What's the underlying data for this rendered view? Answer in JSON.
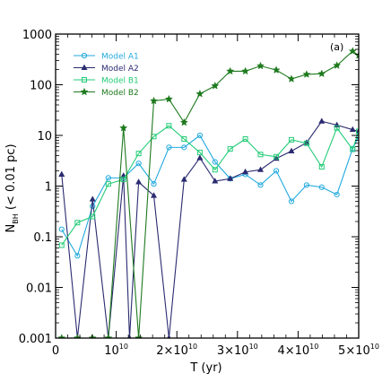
{
  "chart_data": {
    "type": "line",
    "panel_label": "(a)",
    "xlabel": "T (yr)",
    "ylabel_main": "N",
    "ylabel_sub": "BH",
    "ylabel_rest": " (< 0.01 pc)",
    "xlim": [
      0,
      50000000000.0
    ],
    "ylim": [
      0.001,
      1000
    ],
    "yscale": "log",
    "x_ticks": [
      {
        "value": 0,
        "label": "0",
        "exp": ""
      },
      {
        "value": 10000000000.0,
        "label": "10",
        "exp": "10"
      },
      {
        "value": 20000000000.0,
        "label": "2×10",
        "exp": "10"
      },
      {
        "value": 30000000000.0,
        "label": "3×10",
        "exp": "10"
      },
      {
        "value": 40000000000.0,
        "label": "4×10",
        "exp": "10"
      },
      {
        "value": 50000000000.0,
        "label": "5×10",
        "exp": "10"
      }
    ],
    "y_ticks": [
      {
        "value": 0.001,
        "label": "0.001"
      },
      {
        "value": 0.01,
        "label": "0.01"
      },
      {
        "value": 0.1,
        "label": "0.1"
      },
      {
        "value": 1,
        "label": "1"
      },
      {
        "value": 10,
        "label": "10"
      },
      {
        "value": 100,
        "label": "100"
      },
      {
        "value": 1000,
        "label": "1000"
      }
    ],
    "legend_position": "top-left",
    "series": [
      {
        "name": "Model A1",
        "color": "#22aadd",
        "marker": "circle",
        "points": [
          [
            1000000000.0,
            0.14
          ],
          [
            3600000000.0,
            0.042
          ],
          [
            6100000000.0,
            0.4
          ],
          [
            8700000000.0,
            1.45
          ],
          [
            11200000000.0,
            1.45
          ],
          [
            13700000000.0,
            2.8
          ],
          [
            16200000000.0,
            1.1
          ],
          [
            18700000000.0,
            5.8
          ],
          [
            21200000000.0,
            5.8
          ],
          [
            23800000000.0,
            10
          ],
          [
            26300000000.0,
            3.0
          ],
          [
            28800000000.0,
            1.4
          ],
          [
            31300000000.0,
            1.7
          ],
          [
            33800000000.0,
            1.05
          ],
          [
            36400000000.0,
            2.0
          ],
          [
            38900000000.0,
            0.5
          ],
          [
            41400000000.0,
            1.05
          ],
          [
            43900000000.0,
            0.95
          ],
          [
            46400000000.0,
            0.68
          ],
          [
            49000000000.0,
            5.5
          ],
          [
            50000000000.0,
            9.5
          ]
        ]
      },
      {
        "name": "Model A2",
        "color": "#2a2a70",
        "marker": "triangle",
        "points": [
          [
            1000000000.0,
            1.7
          ],
          [
            3600000000.0,
            0.001
          ],
          [
            6100000000.0,
            0.55
          ],
          [
            8700000000.0,
            0.001
          ],
          [
            11200000000.0,
            1.6
          ],
          [
            12200000000.0,
            0.001
          ],
          [
            13700000000.0,
            1.2
          ],
          [
            16200000000.0,
            0.65
          ],
          [
            18700000000.0,
            0.001
          ],
          [
            21200000000.0,
            1.35
          ],
          [
            23800000000.0,
            3.6
          ],
          [
            26300000000.0,
            1.25
          ],
          [
            28800000000.0,
            1.4
          ],
          [
            31300000000.0,
            1.9
          ],
          [
            33800000000.0,
            2.1
          ],
          [
            36400000000.0,
            3.5
          ],
          [
            38900000000.0,
            4.9
          ],
          [
            41400000000.0,
            7.2
          ],
          [
            43900000000.0,
            19
          ],
          [
            46400000000.0,
            16
          ],
          [
            49000000000.0,
            13
          ],
          [
            50000000000.0,
            12
          ]
        ]
      },
      {
        "name": "Model B1",
        "color": "#22cc77",
        "marker": "square",
        "points": [
          [
            1000000000.0,
            0.068
          ],
          [
            3600000000.0,
            0.19
          ],
          [
            6100000000.0,
            0.25
          ],
          [
            8700000000.0,
            1.1
          ],
          [
            11200000000.0,
            1.35
          ],
          [
            13700000000.0,
            4.4
          ],
          [
            16200000000.0,
            9.5
          ],
          [
            18700000000.0,
            15.5
          ],
          [
            21200000000.0,
            8.5
          ],
          [
            23800000000.0,
            4.6
          ],
          [
            26300000000.0,
            2.1
          ],
          [
            28800000000.0,
            5.4
          ],
          [
            31300000000.0,
            8.5
          ],
          [
            33800000000.0,
            4.2
          ],
          [
            36400000000.0,
            3.8
          ],
          [
            38900000000.0,
            8.2
          ],
          [
            41400000000.0,
            7.0
          ],
          [
            43900000000.0,
            2.4
          ],
          [
            46400000000.0,
            14
          ],
          [
            49000000000.0,
            5.3
          ],
          [
            50000000000.0,
            12
          ]
        ]
      },
      {
        "name": "Model B2",
        "color": "#1e7a1e",
        "marker": "star",
        "points": [
          [
            1000000000.0,
            0.001
          ],
          [
            3600000000.0,
            0.001
          ],
          [
            6100000000.0,
            0.001
          ],
          [
            8700000000.0,
            0.001
          ],
          [
            11200000000.0,
            14
          ],
          [
            13700000000.0,
            0.001
          ],
          [
            16200000000.0,
            48
          ],
          [
            18700000000.0,
            52
          ],
          [
            21200000000.0,
            18
          ],
          [
            23800000000.0,
            66
          ],
          [
            26300000000.0,
            95
          ],
          [
            28800000000.0,
            185
          ],
          [
            31300000000.0,
            185
          ],
          [
            33800000000.0,
            235
          ],
          [
            36400000000.0,
            195
          ],
          [
            38900000000.0,
            130
          ],
          [
            41400000000.0,
            160
          ],
          [
            43900000000.0,
            165
          ],
          [
            46400000000.0,
            240
          ],
          [
            49000000000.0,
            460
          ],
          [
            50000000000.0,
            380
          ]
        ]
      }
    ]
  }
}
